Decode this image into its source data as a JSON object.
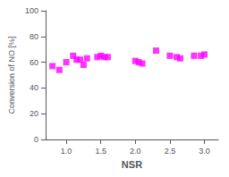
{
  "chart_data": {
    "type": "scatter",
    "x": [
      0.8,
      0.9,
      1.0,
      1.1,
      1.15,
      1.2,
      1.25,
      1.3,
      1.45,
      1.5,
      1.55,
      1.6,
      2.0,
      2.05,
      2.1,
      2.3,
      2.5,
      2.6,
      2.65,
      2.85,
      2.95,
      3.0
    ],
    "values": [
      57,
      54,
      60,
      65,
      62,
      62,
      58,
      63,
      64,
      65,
      64,
      64,
      61,
      60,
      59,
      69,
      65,
      64,
      63,
      65,
      65,
      66
    ],
    "color": "#FF00FF",
    "marker": "square",
    "xlabel": "NSR",
    "ylabel": "Conversion of NO [%]",
    "xlim": [
      0.7,
      3.2
    ],
    "ylim": [
      0,
      100
    ],
    "xticks": [
      {
        "value": 1.0,
        "label": "1.0"
      },
      1.5,
      {
        "value": 2.0,
        "label": "2.0"
      },
      2.5,
      {
        "value": 3.0,
        "label": "3.0"
      }
    ],
    "yticks": [
      0,
      20,
      40,
      60,
      80,
      100
    ],
    "grid": false
  }
}
